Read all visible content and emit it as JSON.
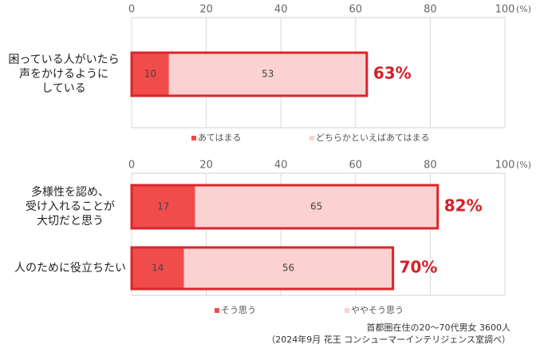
{
  "chart_data": [
    {
      "type": "stacked_bar_horizontal",
      "categories": [
        [
          "困っている人がいたら",
          "声をかけるように",
          "している"
        ]
      ],
      "series": [
        {
          "name": "あてはまる",
          "color": "#f04c4c",
          "values": [
            10
          ]
        },
        {
          "name": "どちらかといえばあてはまる",
          "color": "#fcd1d1",
          "values": [
            53
          ]
        }
      ],
      "totals": [
        63
      ],
      "total_labels": [
        "63%"
      ],
      "xlim": [
        0,
        100
      ],
      "xticks": [
        0,
        20,
        40,
        60,
        80,
        100
      ],
      "x_unit": "(%)",
      "grid": true
    },
    {
      "type": "stacked_bar_horizontal",
      "categories": [
        [
          "多様性を認め、",
          "受け入れることが",
          "大切だと思う"
        ],
        [
          "人のために役立ちたい"
        ]
      ],
      "series": [
        {
          "name": "そう思う",
          "color": "#f04c4c",
          "values": [
            17,
            14
          ]
        },
        {
          "name": "ややそう思う",
          "color": "#fcd1d1",
          "values": [
            65,
            56
          ]
        }
      ],
      "totals": [
        82,
        70
      ],
      "total_labels": [
        "82%",
        "70%"
      ],
      "xlim": [
        0,
        100
      ],
      "xticks": [
        0,
        20,
        40,
        60,
        80,
        100
      ],
      "x_unit": "(%)",
      "grid": true
    }
  ],
  "note": [
    "首都圏在住の20～70代男女 3600人",
    "（2024年9月 花王 コンシューマーインテリジェンス室調べ）"
  ]
}
